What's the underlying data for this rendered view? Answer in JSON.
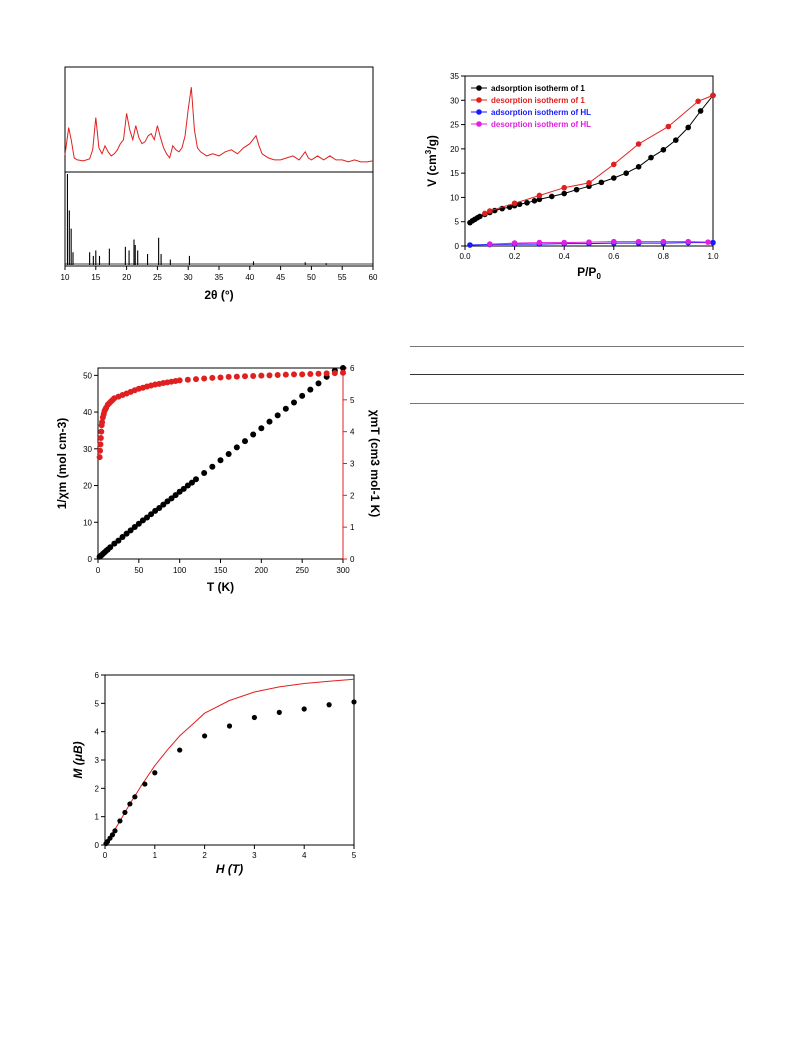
{
  "charts": {
    "pxrd": {
      "type": "line",
      "xlabel": "2θ (°)",
      "xlim": [
        10,
        60
      ],
      "xticks": [
        "10",
        "15",
        "20",
        "25",
        "30",
        "35",
        "40",
        "45",
        "50",
        "55",
        "60"
      ],
      "top_color": "#e02020",
      "bottom_color": "#000000"
    },
    "iso": {
      "type": "line",
      "xlabel_main": "P/P",
      "xlabel_sub": "0",
      "ylabel_pre": "V (cm",
      "ylabel_sup": "3",
      "ylabel_post": "/g)",
      "xlim": [
        0,
        1.0
      ],
      "ylim": [
        0,
        35
      ],
      "xticks": [
        "0.0",
        "0.2",
        "0.4",
        "0.6",
        "0.8",
        "1.0"
      ],
      "yticks": [
        "0",
        "5",
        "10",
        "15",
        "20",
        "25",
        "30",
        "35"
      ],
      "legend": [
        {
          "name": "adsorption isotherm of 1",
          "color": "#000000"
        },
        {
          "name": "desorption isotherm of 1",
          "color": "#e02020"
        },
        {
          "name": "adsorption isotherm of HL",
          "color": "#1a1aff"
        },
        {
          "name": "desorption isotherm of HL",
          "color": "#e020e0"
        }
      ]
    },
    "mag": {
      "type": "scatter",
      "xlabel": "T (K)",
      "ylabel_left": "1/χm (mol cm-3)",
      "ylabel_right": "χmT (cm3 mol-1 K)",
      "xlim": [
        0,
        300
      ],
      "ylim_left": [
        0,
        52
      ],
      "ylim_right": [
        0,
        6
      ],
      "xticks": [
        "0",
        "50",
        "100",
        "150",
        "200",
        "250",
        "300"
      ],
      "yticks_left": [
        "0",
        "10",
        "20",
        "30",
        "40",
        "50"
      ],
      "yticks_right": [
        "0",
        "1",
        "2",
        "3",
        "4",
        "5",
        "6"
      ],
      "left_color": "#000000",
      "right_color": "#e02020"
    },
    "mh": {
      "type": "scatter",
      "xlabel": "H (T)",
      "ylabel": "M (μB)",
      "xlim": [
        0,
        5
      ],
      "ylim": [
        0,
        6
      ],
      "xticks": [
        "0",
        "1",
        "2",
        "3",
        "4",
        "5"
      ],
      "yticks": [
        "0",
        "1",
        "2",
        "3",
        "4",
        "5",
        "6"
      ],
      "point_color": "#000000",
      "line_color": "#e02020"
    }
  },
  "chart_data": [
    {
      "type": "line",
      "xlabel": "2θ (°)",
      "xlim": [
        10,
        60
      ],
      "series": [
        {
          "x": [
            10,
            10.6,
            11,
            11.5,
            12,
            13,
            14,
            14.5,
            15,
            15.5,
            16,
            16.5,
            17,
            17.5,
            18,
            18.5,
            19,
            19.5,
            20,
            20.5,
            21,
            21.5,
            22,
            22.5,
            23,
            23.5,
            24,
            24.5,
            25,
            25.5,
            26,
            26.5,
            27,
            27.5,
            28,
            28.5,
            29,
            29.5,
            30,
            30.5,
            31,
            31.5,
            32,
            33,
            34,
            35,
            36,
            37,
            38,
            39,
            40,
            40.5,
            41,
            41.5,
            42,
            42.5,
            43,
            44,
            45,
            46,
            47,
            48,
            49,
            49.5,
            50,
            51,
            51.5,
            52,
            53,
            54,
            55,
            56,
            57,
            58,
            59,
            60
          ],
          "values": [
            15,
            42,
            30,
            12,
            10,
            9,
            11,
            20,
            52,
            22,
            16,
            24,
            18,
            14,
            16,
            20,
            26,
            30,
            56,
            40,
            30,
            44,
            32,
            26,
            28,
            34,
            36,
            30,
            44,
            32,
            22,
            16,
            12,
            24,
            20,
            18,
            22,
            34,
            60,
            82,
            40,
            22,
            18,
            14,
            16,
            14,
            18,
            20,
            16,
            22,
            26,
            30,
            34,
            24,
            16,
            14,
            12,
            10,
            10,
            12,
            14,
            10,
            18,
            12,
            10,
            14,
            12,
            10,
            14,
            10,
            10,
            8,
            10,
            8,
            8,
            9
          ]
        },
        {
          "x": [
            10.4,
            10.7,
            11.0,
            11.3,
            14.0,
            14.6,
            15.0,
            15.6,
            17.2,
            19.8,
            20.4,
            21.2,
            21.4,
            21.8,
            23.4,
            25.2,
            25.6,
            27.1,
            30.2,
            40.6,
            49.0,
            52.4
          ],
          "values": [
            100,
            60,
            40,
            14,
            14,
            10,
            16,
            10,
            18,
            20,
            16,
            28,
            22,
            16,
            12,
            30,
            12,
            6,
            10,
            4,
            3,
            2
          ]
        }
      ]
    },
    {
      "type": "line",
      "xlabel": "P/P0",
      "ylabel": "V (cm3/g)",
      "xlim": [
        0,
        1.0
      ],
      "ylim": [
        0,
        35
      ],
      "series": [
        {
          "name": "adsorption isotherm of 1",
          "x": [
            0.02,
            0.03,
            0.04,
            0.05,
            0.06,
            0.08,
            0.1,
            0.12,
            0.15,
            0.18,
            0.2,
            0.22,
            0.25,
            0.28,
            0.3,
            0.35,
            0.4,
            0.45,
            0.5,
            0.55,
            0.6,
            0.65,
            0.7,
            0.75,
            0.8,
            0.85,
            0.9,
            0.95,
            1.0
          ],
          "values": [
            4.8,
            5.2,
            5.5,
            5.8,
            6.1,
            6.5,
            6.9,
            7.3,
            7.7,
            8.0,
            8.3,
            8.6,
            8.9,
            9.3,
            9.6,
            10.2,
            10.8,
            11.6,
            12.3,
            13.1,
            14.0,
            15.0,
            16.3,
            18.2,
            19.8,
            21.8,
            24.4,
            27.8,
            31.0
          ]
        },
        {
          "name": "desorption isotherm of 1",
          "x": [
            1.0,
            0.94,
            0.82,
            0.7,
            0.6,
            0.5,
            0.4,
            0.3,
            0.2,
            0.1,
            0.08
          ],
          "values": [
            31.0,
            29.8,
            24.6,
            21.0,
            16.8,
            13.0,
            12.0,
            10.4,
            8.8,
            7.2,
            6.7
          ]
        },
        {
          "name": "adsorption isotherm of HL",
          "x": [
            0.02,
            0.1,
            0.2,
            0.3,
            0.4,
            0.5,
            0.6,
            0.7,
            0.8,
            0.9,
            1.0
          ],
          "values": [
            0.2,
            0.3,
            0.4,
            0.4,
            0.5,
            0.5,
            0.6,
            0.6,
            0.6,
            0.7,
            0.7
          ]
        },
        {
          "name": "desorption isotherm of HL",
          "x": [
            0.98,
            0.9,
            0.8,
            0.7,
            0.6,
            0.5,
            0.4,
            0.3,
            0.2,
            0.1
          ],
          "values": [
            0.8,
            0.9,
            0.9,
            0.9,
            0.9,
            0.8,
            0.7,
            0.7,
            0.6,
            0.4
          ]
        }
      ]
    },
    {
      "type": "scatter",
      "xlabel": "T (K)",
      "xlim": [
        0,
        300
      ],
      "series": [
        {
          "name": "1/χm (mol cm-3)",
          "axis": "left",
          "x": [
            2,
            4,
            6,
            8,
            10,
            12,
            15,
            20,
            25,
            30,
            35,
            40,
            45,
            50,
            55,
            60,
            65,
            70,
            75,
            80,
            85,
            90,
            95,
            100,
            105,
            110,
            115,
            120,
            130,
            140,
            150,
            160,
            170,
            180,
            190,
            200,
            210,
            220,
            230,
            240,
            250,
            260,
            270,
            280,
            290,
            300
          ],
          "values": [
            0.6,
            1.0,
            1.4,
            1.8,
            2.2,
            2.6,
            3.2,
            4.2,
            5.0,
            6.0,
            6.9,
            7.8,
            8.7,
            9.6,
            10.5,
            11.3,
            12.2,
            13.1,
            13.9,
            14.8,
            15.7,
            16.5,
            17.4,
            18.3,
            19.1,
            20.0,
            20.8,
            21.7,
            23.4,
            25.1,
            26.9,
            28.6,
            30.4,
            32.1,
            33.9,
            35.6,
            37.4,
            39.1,
            40.9,
            42.6,
            44.4,
            46.1,
            47.8,
            49.6,
            51.3,
            52.0
          ]
        },
        {
          "name": "χmT (cm3 mol-1 K)",
          "axis": "right",
          "x": [
            2,
            2.5,
            3,
            3.5,
            4,
            4.5,
            5,
            6,
            7,
            8,
            9,
            10,
            12,
            14,
            16,
            18,
            20,
            25,
            30,
            35,
            40,
            45,
            50,
            55,
            60,
            65,
            70,
            75,
            80,
            85,
            90,
            95,
            100,
            110,
            120,
            130,
            140,
            150,
            160,
            170,
            180,
            190,
            200,
            210,
            220,
            230,
            240,
            250,
            260,
            270,
            280,
            290,
            300
          ],
          "values": [
            3.2,
            3.4,
            3.6,
            3.8,
            4.0,
            4.2,
            4.3,
            4.45,
            4.55,
            4.65,
            4.7,
            4.75,
            4.85,
            4.9,
            4.95,
            5.0,
            5.05,
            5.1,
            5.15,
            5.2,
            5.25,
            5.3,
            5.35,
            5.38,
            5.42,
            5.45,
            5.48,
            5.5,
            5.53,
            5.55,
            5.57,
            5.59,
            5.61,
            5.63,
            5.65,
            5.67,
            5.69,
            5.7,
            5.72,
            5.73,
            5.74,
            5.75,
            5.76,
            5.77,
            5.78,
            5.79,
            5.8,
            5.8,
            5.81,
            5.82,
            5.83,
            5.84,
            5.85
          ]
        }
      ]
    },
    {
      "type": "scatter",
      "xlabel": "H (T)",
      "ylabel": "M (μB)",
      "xlim": [
        0,
        5
      ],
      "ylim": [
        0,
        6
      ],
      "series": [
        {
          "x": [
            0.02,
            0.05,
            0.1,
            0.15,
            0.2,
            0.3,
            0.4,
            0.5,
            0.6,
            0.8,
            1.0,
            1.5,
            2.0,
            2.5,
            3.0,
            3.5,
            4.0,
            4.5,
            5.0
          ],
          "values": [
            0.05,
            0.12,
            0.24,
            0.36,
            0.5,
            0.85,
            1.15,
            1.45,
            1.7,
            2.15,
            2.55,
            3.35,
            3.85,
            4.2,
            4.5,
            4.68,
            4.8,
            4.95,
            5.05
          ]
        },
        {
          "x": [
            0,
            0.25,
            0.5,
            0.75,
            1.0,
            1.25,
            1.5,
            1.75,
            2.0,
            2.5,
            3.0,
            3.5,
            4.0,
            4.5,
            5.0
          ],
          "values": [
            0,
            0.7,
            1.45,
            2.15,
            2.8,
            3.35,
            3.85,
            4.25,
            4.65,
            5.1,
            5.4,
            5.58,
            5.7,
            5.78,
            5.85
          ]
        }
      ]
    }
  ]
}
